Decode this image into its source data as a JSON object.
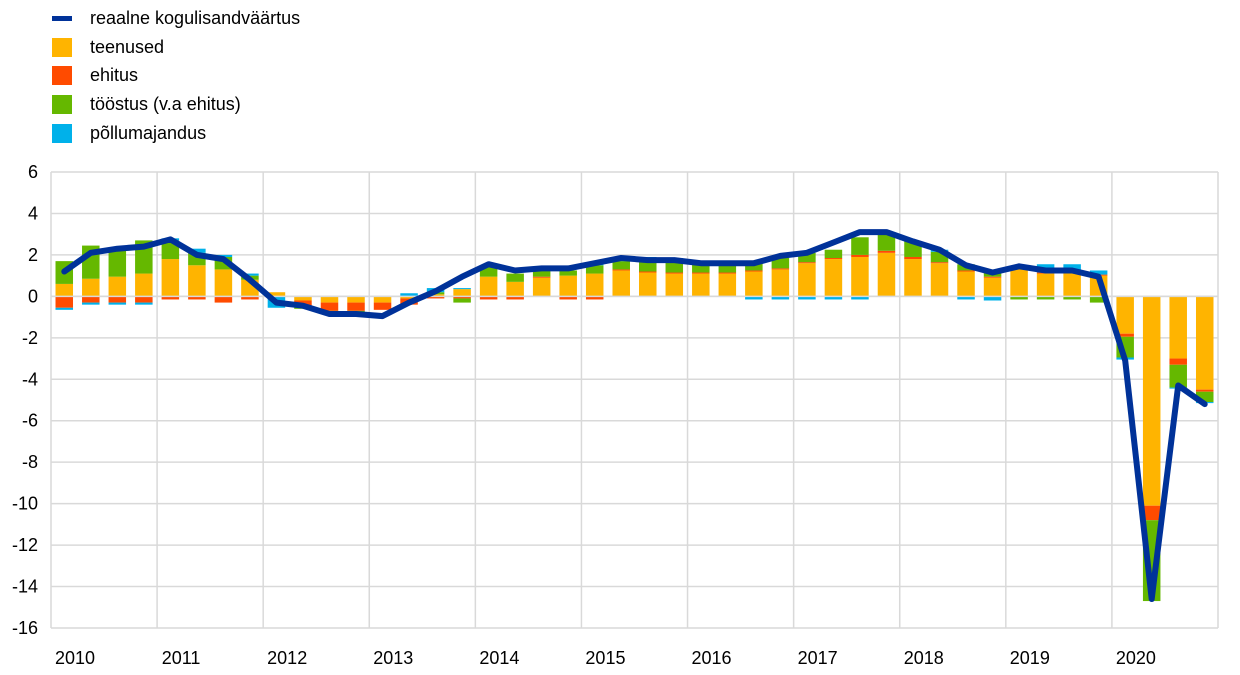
{
  "chart_data": {
    "type": "bar",
    "stacked": true,
    "x_tick_labels": [
      "2010",
      "2011",
      "2012",
      "2013",
      "2014",
      "2015",
      "2016",
      "2017",
      "2018",
      "2019",
      "2020"
    ],
    "periods": [
      "2010Q1",
      "2010Q2",
      "2010Q3",
      "2010Q4",
      "2011Q1",
      "2011Q2",
      "2011Q3",
      "2011Q4",
      "2012Q1",
      "2012Q2",
      "2012Q3",
      "2012Q4",
      "2013Q1",
      "2013Q2",
      "2013Q3",
      "2013Q4",
      "2014Q1",
      "2014Q2",
      "2014Q3",
      "2014Q4",
      "2015Q1",
      "2015Q2",
      "2015Q3",
      "2015Q4",
      "2016Q1",
      "2016Q2",
      "2016Q3",
      "2016Q4",
      "2017Q1",
      "2017Q2",
      "2017Q3",
      "2017Q4",
      "2018Q1",
      "2018Q2",
      "2018Q3",
      "2018Q4",
      "2019Q1",
      "2019Q2",
      "2019Q3",
      "2019Q4",
      "2020Q1",
      "2020Q2",
      "2020Q3",
      "2020Q4"
    ],
    "ylim": [
      -16,
      6
    ],
    "yticks": [
      -16,
      -14,
      -12,
      -10,
      -8,
      -6,
      -4,
      -2,
      0,
      2,
      4,
      6
    ],
    "grid": "horizontal",
    "legend_position": "top-left",
    "series": [
      {
        "name": "teenused",
        "kind": "bar",
        "color": "#FFB400",
        "values": [
          0.6,
          0.85,
          0.95,
          1.1,
          1.8,
          1.5,
          1.3,
          0.8,
          0.2,
          -0.2,
          -0.3,
          -0.3,
          -0.3,
          -0.1,
          0.1,
          0.35,
          0.95,
          0.7,
          0.9,
          1.0,
          1.1,
          1.25,
          1.15,
          1.1,
          1.1,
          1.1,
          1.2,
          1.3,
          1.6,
          1.8,
          1.9,
          2.1,
          1.8,
          1.6,
          1.2,
          0.9,
          1.3,
          1.1,
          1.15,
          1.0,
          -1.8,
          -10.1,
          -3.0,
          -4.5
        ]
      },
      {
        "name": "ehitus",
        "kind": "bar",
        "color": "#FF4B00",
        "values": [
          -0.55,
          -0.3,
          -0.3,
          -0.3,
          -0.15,
          -0.15,
          -0.3,
          -0.15,
          0.0,
          -0.3,
          -0.4,
          -0.4,
          -0.35,
          -0.3,
          -0.1,
          -0.1,
          -0.15,
          -0.15,
          0.05,
          -0.15,
          -0.15,
          0.05,
          0.05,
          0.05,
          0.05,
          0.05,
          0.05,
          0.05,
          0.05,
          0.05,
          0.1,
          0.1,
          0.1,
          0.05,
          0.05,
          0.05,
          0.05,
          0.05,
          0.0,
          0.05,
          -0.15,
          -0.7,
          -0.3,
          -0.1
        ]
      },
      {
        "name": "tööstus (v.a ehitus)",
        "kind": "bar",
        "color": "#65B800",
        "values": [
          1.1,
          1.6,
          1.35,
          1.6,
          0.9,
          0.6,
          0.6,
          0.2,
          0.0,
          -0.1,
          -0.1,
          -0.2,
          0.0,
          0.0,
          0.1,
          -0.2,
          0.5,
          0.4,
          0.3,
          0.25,
          0.4,
          0.4,
          0.5,
          0.5,
          0.4,
          0.35,
          0.35,
          0.5,
          0.45,
          0.4,
          0.85,
          0.85,
          0.75,
          0.5,
          0.3,
          0.2,
          -0.15,
          -0.15,
          -0.15,
          -0.3,
          -1.0,
          -3.9,
          -1.1,
          -0.5
        ]
      },
      {
        "name": "põllumajandus",
        "kind": "bar",
        "color": "#00B1EA",
        "values": [
          -0.1,
          -0.1,
          -0.1,
          -0.1,
          0.1,
          0.2,
          0.1,
          0.1,
          -0.55,
          0.0,
          0.0,
          0.0,
          0.0,
          0.15,
          0.2,
          0.05,
          0.0,
          0.0,
          0.0,
          0.0,
          0.1,
          0.1,
          0.2,
          0.2,
          0.1,
          0.1,
          -0.15,
          -0.15,
          -0.15,
          -0.15,
          -0.15,
          0.0,
          0.0,
          0.1,
          -0.15,
          -0.2,
          0.1,
          0.4,
          0.4,
          0.2,
          -0.1,
          0.0,
          -0.05,
          -0.05
        ]
      },
      {
        "name": "reaalne kogulisandväärtus",
        "kind": "line",
        "color": "#003299",
        "values": [
          1.2,
          2.1,
          2.3,
          2.4,
          2.75,
          2.0,
          1.8,
          0.8,
          -0.3,
          -0.45,
          -0.85,
          -0.85,
          -0.95,
          -0.3,
          0.25,
          0.95,
          1.55,
          1.25,
          1.35,
          1.35,
          1.6,
          1.85,
          1.75,
          1.75,
          1.6,
          1.6,
          1.6,
          1.95,
          2.1,
          2.6,
          3.1,
          3.1,
          2.65,
          2.25,
          1.5,
          1.15,
          1.45,
          1.25,
          1.25,
          0.95,
          -3.1,
          -14.6,
          -4.3,
          -5.2
        ]
      }
    ]
  }
}
